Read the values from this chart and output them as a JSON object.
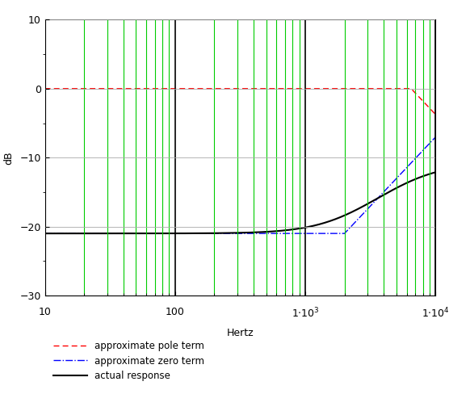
{
  "freq_min": 10,
  "freq_max": 10000,
  "ylim": [
    -30,
    10
  ],
  "yticks": [
    -30,
    -20,
    -10,
    0,
    10
  ],
  "xlabel": "Hertz",
  "ylabel": "dB",
  "bg_color": "#ffffff",
  "grid_color_minor": "#00cc00",
  "grid_color_major": "#000000",
  "pole_color": "#ff0000",
  "zero_color": "#0000ff",
  "actual_color": "#000000",
  "dc_gain_dB": -21.0,
  "zero_freq": 2000,
  "pole_freq": 6500,
  "legend_labels": [
    "approximate pole term",
    "approximate zero term",
    "actual response"
  ]
}
